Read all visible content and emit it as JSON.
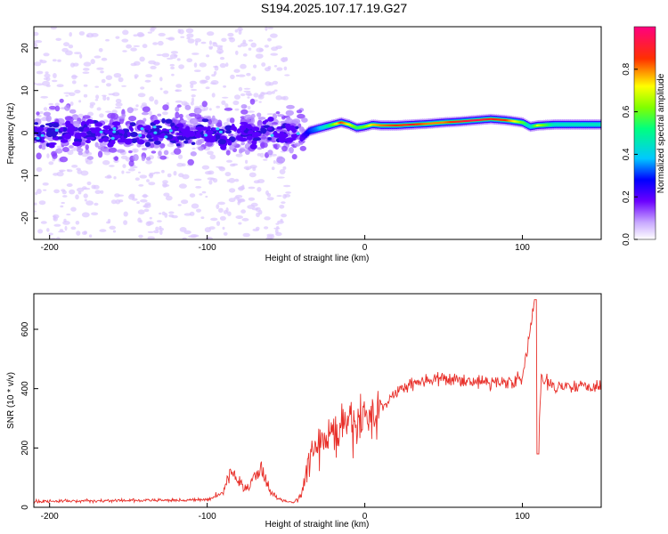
{
  "title": "S194.2025.107.17.19.G27",
  "chart_data": [
    {
      "type": "heatmap",
      "xlabel": "Height of straight line (km)",
      "ylabel": "Frequency (Hz)",
      "xlim": [
        -210,
        150
      ],
      "ylim": [
        -25,
        25
      ],
      "xticks": [
        -200,
        -100,
        0,
        100
      ],
      "yticks": [
        -20,
        -10,
        0,
        10,
        20
      ],
      "colorbar": {
        "label": "Normalized spectral amplitude",
        "range": [
          0,
          1
        ],
        "ticks": [
          0.0,
          0.2,
          0.4,
          0.6,
          0.8
        ]
      },
      "ridge": {
        "x": [
          -40,
          -35,
          -30,
          -25,
          -20,
          -15,
          -10,
          -5,
          0,
          5,
          10,
          20,
          30,
          40,
          50,
          60,
          70,
          80,
          90,
          100,
          105,
          110,
          120,
          130,
          140,
          150
        ],
        "freq": [
          -1.2,
          0.5,
          1,
          1.5,
          2,
          2.5,
          2,
          1.2,
          1.5,
          2,
          1.8,
          1.8,
          2,
          2.2,
          2.5,
          2.7,
          3,
          3.3,
          3,
          2.5,
          1.5,
          1.8,
          2,
          2,
          2,
          2
        ],
        "amplitude": [
          0.2,
          0.3,
          0.35,
          0.45,
          0.6,
          0.85,
          0.7,
          0.55,
          0.6,
          0.75,
          0.8,
          0.85,
          0.9,
          0.8,
          0.8,
          0.9,
          0.95,
          0.9,
          0.85,
          0.6,
          0.4,
          0.7,
          0.45,
          0.45,
          0.45,
          0.45
        ]
      }
    },
    {
      "type": "line",
      "xlabel": "Height of straight line (km)",
      "ylabel": "SNR (10 * v/v)",
      "xlim": [
        -210,
        150
      ],
      "ylim": [
        0,
        720
      ],
      "xticks": [
        -200,
        -100,
        0,
        100
      ],
      "yticks": [
        0,
        200,
        400,
        600
      ],
      "color": "#e8302a",
      "series": [
        {
          "x": [
            -210,
            -100,
            -90,
            -85,
            -80,
            -75,
            -70,
            -65,
            -60,
            -55,
            -50,
            -45,
            -40,
            -35,
            -30,
            -25,
            -20,
            -10,
            0,
            10,
            20,
            30,
            40,
            60,
            80,
            100,
            108,
            110,
            112,
            120,
            150
          ],
          "y": [
            20,
            25,
            50,
            120,
            90,
            60,
            100,
            135,
            50,
            30,
            20,
            15,
            45,
            170,
            200,
            230,
            250,
            270,
            300,
            330,
            390,
            420,
            430,
            430,
            420,
            430,
            700,
            200,
            430,
            410,
            410
          ]
        }
      ]
    }
  ]
}
